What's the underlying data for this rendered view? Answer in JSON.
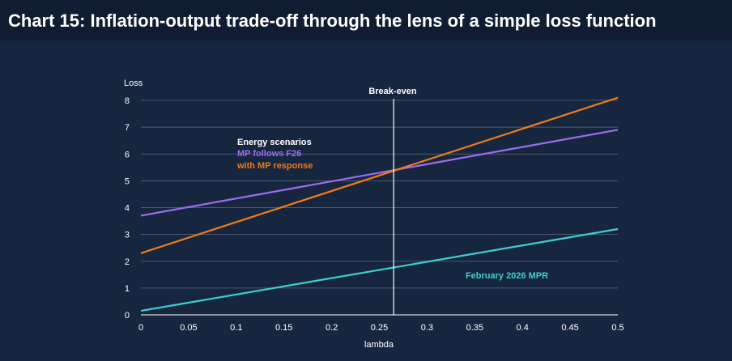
{
  "header": {
    "title": "Chart 15: Inflation-output trade-off through the lens of a simple loss function"
  },
  "chart_data": {
    "type": "line",
    "title": "Chart 15: Inflation-output trade-off through the lens of a simple loss function",
    "xlabel": "lambda",
    "ylabel": "Loss",
    "xlim": [
      0,
      0.5
    ],
    "ylim": [
      0,
      8
    ],
    "x_ticks": [
      "0",
      "0.05",
      "0.1",
      "0.15",
      "0.2",
      "0.25",
      "0.3",
      "0.35",
      "0.4",
      "0.45",
      "0.5"
    ],
    "y_ticks": [
      "0",
      "1",
      "2",
      "3",
      "4",
      "5",
      "6",
      "7",
      "8"
    ],
    "grid": true,
    "series": [
      {
        "name": "MP follows F26",
        "color": "#9b6cf0",
        "x": [
          0,
          0.5
        ],
        "y": [
          3.7,
          6.9
        ]
      },
      {
        "name": "with MP response",
        "color": "#f07a1a",
        "x": [
          0,
          0.5
        ],
        "y": [
          2.3,
          8.1
        ]
      },
      {
        "name": "February 2026 MPR",
        "color": "#3ecfd0",
        "x": [
          0,
          0.5
        ],
        "y": [
          0.15,
          3.2
        ]
      }
    ],
    "vline": {
      "x": 0.265,
      "label": "Break-even",
      "color": "#ffffff"
    },
    "legend": {
      "heading": "Energy scenarios",
      "entries": [
        "MP follows F26",
        "with MP response"
      ]
    },
    "annotation": {
      "text": "February 2026 MPR",
      "color": "#3ecfd0"
    }
  }
}
